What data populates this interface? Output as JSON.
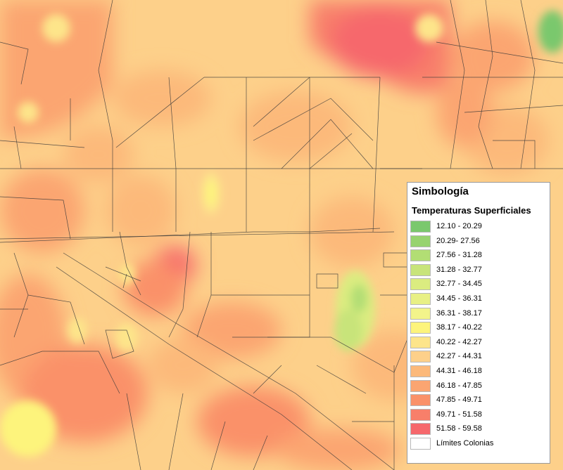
{
  "legend": {
    "title": "Simbología",
    "subtitle": "Temperaturas Superficiales",
    "classes": [
      {
        "label": "12.10 - 20.29",
        "color": "#7ac86d"
      },
      {
        "label": "20.29- 27.56",
        "color": "#97d36f"
      },
      {
        "label": "27.56 - 31.28",
        "color": "#b2de74"
      },
      {
        "label": "31.28 - 32.77",
        "color": "#c8e47a"
      },
      {
        "label": "32.77 - 34.45",
        "color": "#dbec80"
      },
      {
        "label": "34.45 - 36.31",
        "color": "#e8f085"
      },
      {
        "label": "36.31 - 38.17",
        "color": "#f3f48a"
      },
      {
        "label": "38.17 - 40.22",
        "color": "#fdf47c"
      },
      {
        "label": "40.22 - 42.27",
        "color": "#fde58a"
      },
      {
        "label": "42.27 - 44.31",
        "color": "#fdd08a"
      },
      {
        "label": "44.31 - 46.18",
        "color": "#fcb97a"
      },
      {
        "label": "46.18 - 47.85",
        "color": "#fba571"
      },
      {
        "label": "47.85 - 49.71",
        "color": "#fa9169"
      },
      {
        "label": "49.71 - 51.58",
        "color": "#f87f6a"
      },
      {
        "label": "51.58 - 59.58",
        "color": "#f6686c"
      }
    ],
    "boundary_label": "Límites Colonias",
    "boundary_color": "#ffffff"
  }
}
